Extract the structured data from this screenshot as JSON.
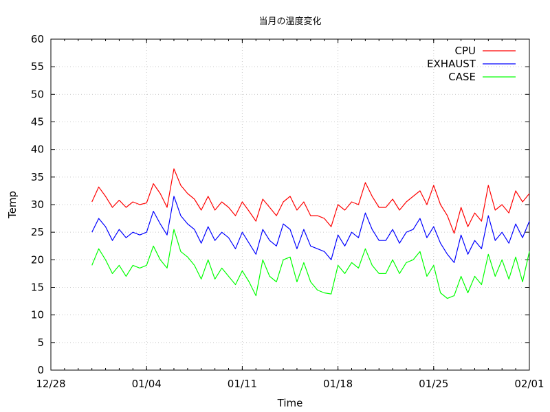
{
  "chart_data": {
    "type": "line",
    "title": "当月の温度変化",
    "xlabel": "Time",
    "ylabel": "Temp",
    "xlim": [
      "12/28",
      "02/01"
    ],
    "ylim": [
      0,
      60
    ],
    "x_ticks": [
      "12/28",
      "01/04",
      "01/11",
      "01/18",
      "01/25",
      "02/01"
    ],
    "y_ticks": [
      "0",
      "5",
      "10",
      "15",
      "20",
      "25",
      "30",
      "35",
      "40",
      "45",
      "50",
      "55",
      "60"
    ],
    "grid": true,
    "legend_position": "top-right",
    "series": [
      {
        "name": "CPU",
        "color": "#ff0000",
        "x": [
          "12/31",
          "12/31 12:00",
          "01/01",
          "01/01 12:00",
          "01/02",
          "01/02 12:00",
          "01/03",
          "01/03 12:00",
          "01/04",
          "01/04 12:00",
          "01/05",
          "01/05 12:00",
          "01/06",
          "01/06 12:00",
          "01/07",
          "01/07 12:00",
          "01/08",
          "01/08 12:00",
          "01/09",
          "01/09 12:00",
          "01/10",
          "01/10 12:00",
          "01/11",
          "01/11 12:00",
          "01/12",
          "01/12 12:00",
          "01/13",
          "01/13 12:00",
          "01/14",
          "01/14 12:00",
          "01/15",
          "01/15 12:00",
          "01/16",
          "01/16 12:00",
          "01/17",
          "01/17 12:00",
          "01/18",
          "01/18 12:00",
          "01/19",
          "01/19 12:00",
          "01/20",
          "01/20 12:00",
          "01/21",
          "01/21 12:00",
          "01/22",
          "01/22 12:00",
          "01/23",
          "01/23 12:00",
          "01/24",
          "01/24 12:00",
          "01/25",
          "01/25 12:00",
          "01/26",
          "01/26 12:00",
          "01/27",
          "01/27 12:00",
          "01/28",
          "01/28 12:00",
          "01/29",
          "01/29 12:00",
          "01/30",
          "01/30 12:00",
          "01/31",
          "01/31 12:00",
          "02/01"
        ],
        "values": [
          30.5,
          33.2,
          31.5,
          29.5,
          30.8,
          29.5,
          30.5,
          30.0,
          30.3,
          33.8,
          32.0,
          29.5,
          36.5,
          33.5,
          32.0,
          31.0,
          29.0,
          31.5,
          29.0,
          30.5,
          29.5,
          28.0,
          30.5,
          28.8,
          27.0,
          31.0,
          29.5,
          28.0,
          30.5,
          31.5,
          29.0,
          30.5,
          28.0,
          28.0,
          27.5,
          26.0,
          30.0,
          29.0,
          30.5,
          30.0,
          34.0,
          31.5,
          29.5,
          29.5,
          31.0,
          29.0,
          30.5,
          31.5,
          32.5,
          30.0,
          33.5,
          30.0,
          28.0,
          24.8,
          29.5,
          26.0,
          28.5,
          27.0,
          33.5,
          29.0,
          30.0,
          28.5,
          32.5,
          30.5,
          32.0
        ]
      },
      {
        "name": "EXHAUST",
        "color": "#0000ff",
        "x": [
          "12/31",
          "12/31 12:00",
          "01/01",
          "01/01 12:00",
          "01/02",
          "01/02 12:00",
          "01/03",
          "01/03 12:00",
          "01/04",
          "01/04 12:00",
          "01/05",
          "01/05 12:00",
          "01/06",
          "01/06 12:00",
          "01/07",
          "01/07 12:00",
          "01/08",
          "01/08 12:00",
          "01/09",
          "01/09 12:00",
          "01/10",
          "01/10 12:00",
          "01/11",
          "01/11 12:00",
          "01/12",
          "01/12 12:00",
          "01/13",
          "01/13 12:00",
          "01/14",
          "01/14 12:00",
          "01/15",
          "01/15 12:00",
          "01/16",
          "01/16 12:00",
          "01/17",
          "01/17 12:00",
          "01/18",
          "01/18 12:00",
          "01/19",
          "01/19 12:00",
          "01/20",
          "01/20 12:00",
          "01/21",
          "01/21 12:00",
          "01/22",
          "01/22 12:00",
          "01/23",
          "01/23 12:00",
          "01/24",
          "01/24 12:00",
          "01/25",
          "01/25 12:00",
          "01/26",
          "01/26 12:00",
          "01/27",
          "01/27 12:00",
          "01/28",
          "01/28 12:00",
          "01/29",
          "01/29 12:00",
          "01/30",
          "01/30 12:00",
          "01/31",
          "01/31 12:00",
          "02/01"
        ],
        "values": [
          25.0,
          27.5,
          26.0,
          23.5,
          25.5,
          24.0,
          25.0,
          24.5,
          25.0,
          28.8,
          26.5,
          24.5,
          31.5,
          28.0,
          26.5,
          25.5,
          23.0,
          26.0,
          23.5,
          25.0,
          24.0,
          22.0,
          25.0,
          23.0,
          21.0,
          25.5,
          23.5,
          22.5,
          26.5,
          25.5,
          22.0,
          25.5,
          22.5,
          22.0,
          21.5,
          20.0,
          24.5,
          22.5,
          25.0,
          24.0,
          28.5,
          25.5,
          23.5,
          23.5,
          25.5,
          23.0,
          25.0,
          25.5,
          27.5,
          24.0,
          26.0,
          23.0,
          21.0,
          19.5,
          24.5,
          21.0,
          23.5,
          22.0,
          28.0,
          23.5,
          25.0,
          23.0,
          26.5,
          24.0,
          27.0
        ]
      },
      {
        "name": "CASE",
        "color": "#00ff00",
        "x": [
          "12/31",
          "12/31 12:00",
          "01/01",
          "01/01 12:00",
          "01/02",
          "01/02 12:00",
          "01/03",
          "01/03 12:00",
          "01/04",
          "01/04 12:00",
          "01/05",
          "01/05 12:00",
          "01/06",
          "01/06 12:00",
          "01/07",
          "01/07 12:00",
          "01/08",
          "01/08 12:00",
          "01/09",
          "01/09 12:00",
          "01/10",
          "01/10 12:00",
          "01/11",
          "01/11 12:00",
          "01/12",
          "01/12 12:00",
          "01/13",
          "01/13 12:00",
          "01/14",
          "01/14 12:00",
          "01/15",
          "01/15 12:00",
          "01/16",
          "01/16 12:00",
          "01/17",
          "01/17 12:00",
          "01/18",
          "01/18 12:00",
          "01/19",
          "01/19 12:00",
          "01/20",
          "01/20 12:00",
          "01/21",
          "01/21 12:00",
          "01/22",
          "01/22 12:00",
          "01/23",
          "01/23 12:00",
          "01/24",
          "01/24 12:00",
          "01/25",
          "01/25 12:00",
          "01/26",
          "01/26 12:00",
          "01/27",
          "01/27 12:00",
          "01/28",
          "01/28 12:00",
          "01/29",
          "01/29 12:00",
          "01/30",
          "01/30 12:00",
          "01/31",
          "01/31 12:00",
          "02/01"
        ],
        "values": [
          19.0,
          22.0,
          20.0,
          17.5,
          19.0,
          17.0,
          19.0,
          18.5,
          19.0,
          22.5,
          20.0,
          18.5,
          25.5,
          21.5,
          20.5,
          19.0,
          16.5,
          20.0,
          16.5,
          18.5,
          17.0,
          15.5,
          18.0,
          16.0,
          13.5,
          20.0,
          17.0,
          16.0,
          20.0,
          20.5,
          16.0,
          19.5,
          16.0,
          14.5,
          14.0,
          13.8,
          19.0,
          17.5,
          19.5,
          18.5,
          22.0,
          19.0,
          17.5,
          17.5,
          20.0,
          17.5,
          19.5,
          20.0,
          21.5,
          17.0,
          19.0,
          14.0,
          13.0,
          13.5,
          17.0,
          14.0,
          17.0,
          15.5,
          21.0,
          17.0,
          20.0,
          16.5,
          20.5,
          16.0,
          21.5
        ]
      }
    ]
  }
}
